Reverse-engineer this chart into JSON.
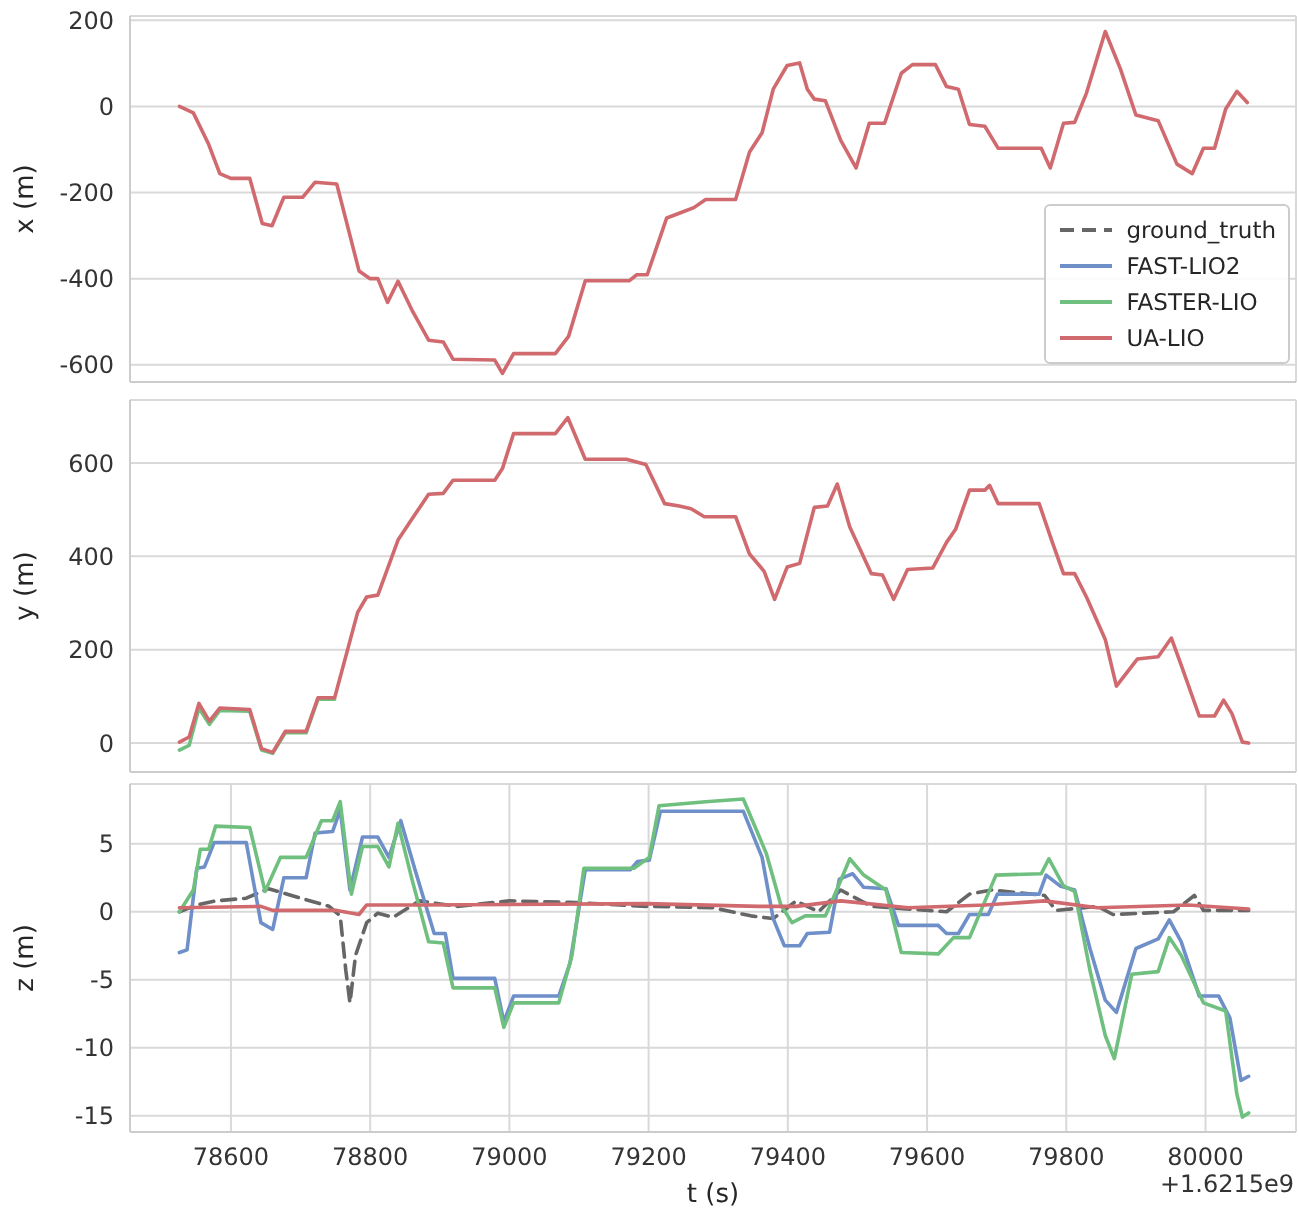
{
  "chart_data": [
    {
      "type": "line",
      "ylabel": "x (m)",
      "xlim": [
        78455,
        80130
      ],
      "xticks": [
        78600,
        78800,
        79000,
        79200,
        79400,
        79600,
        79800,
        80000
      ],
      "ylim": [
        -640,
        210
      ],
      "yticks": [
        -600,
        -400,
        -200,
        0,
        200
      ],
      "grid": true,
      "tick_labels": "y",
      "legend": "bottom right",
      "x": [
        78526,
        78546,
        78568,
        78584,
        78600,
        78627,
        78645,
        78659,
        78676,
        78703,
        78721,
        78752,
        78768,
        78784,
        78800,
        78811,
        78825,
        78840,
        78860,
        78884,
        78905,
        78919,
        78979,
        78990,
        79006,
        79066,
        79085,
        79109,
        79172,
        79183,
        79198,
        79226,
        79244,
        79265,
        79282,
        79325,
        79345,
        79363,
        79379,
        79399,
        79417,
        79428,
        79438,
        79454,
        79476,
        79498,
        79517,
        79539,
        79563,
        79579,
        79612,
        79628,
        79645,
        79661,
        79683,
        79702,
        79764,
        79777,
        79796,
        79812,
        79829,
        79856,
        79878,
        79900,
        79932,
        79959,
        79981,
        79997,
        80013,
        80029,
        80045,
        80060
      ],
      "series": [
        {
          "name": "ground_truth",
          "color": "#666666",
          "line_style": "dashed",
          "values": [
            null,
            null,
            null,
            null,
            null,
            null,
            null,
            null,
            null,
            null,
            null,
            null,
            null,
            null,
            null,
            null,
            null,
            null,
            null,
            null,
            null,
            null,
            null,
            null,
            null,
            null,
            null,
            null,
            null,
            null,
            null,
            null,
            null,
            null,
            null,
            null,
            null,
            null,
            null,
            null,
            null,
            null,
            null,
            null,
            null,
            null,
            null,
            null,
            null,
            null,
            null,
            null,
            null,
            null,
            null,
            null,
            null,
            null,
            null,
            null,
            null,
            null,
            null,
            null,
            null,
            null,
            null,
            null,
            null,
            null,
            null,
            null
          ]
        },
        {
          "name": "FAST-LIO2",
          "color": "#6f8fc9",
          "values": [
            null,
            null,
            null,
            null,
            null,
            null,
            null,
            null,
            null,
            null,
            null,
            null,
            null,
            null,
            null,
            null,
            null,
            null,
            null,
            null,
            null,
            null,
            null,
            null,
            null,
            null,
            null,
            null,
            null,
            null,
            null,
            null,
            null,
            null,
            null,
            null,
            null,
            null,
            null,
            null,
            null,
            null,
            null,
            null,
            null,
            null,
            null,
            null,
            null,
            null,
            null,
            null,
            null,
            null,
            null,
            null,
            null,
            null,
            null,
            null,
            null,
            null,
            null,
            null,
            null,
            null,
            null,
            null,
            null,
            null,
            null,
            null
          ]
        },
        {
          "name": "FASTER-LIO",
          "color": "#6fbf7f",
          "values": [
            null,
            null,
            null,
            null,
            null,
            null,
            null,
            null,
            null,
            null,
            null,
            null,
            null,
            null,
            null,
            null,
            null,
            null,
            null,
            null,
            null,
            null,
            null,
            null,
            null,
            null,
            null,
            null,
            null,
            null,
            null,
            null,
            null,
            null,
            null,
            null,
            null,
            null,
            null,
            null,
            null,
            null,
            null,
            null,
            null,
            null,
            null,
            null,
            null,
            null,
            null,
            null,
            null,
            null,
            null,
            null,
            null,
            null,
            null,
            null,
            null,
            null,
            null,
            null,
            null,
            null,
            null,
            null,
            null,
            null,
            null,
            null
          ]
        },
        {
          "name": "UA-LIO",
          "color": "#d06a6e",
          "values": [
            0,
            -15,
            -88,
            -156,
            -167,
            -167,
            -272,
            -277,
            -211,
            -211,
            -176,
            -180,
            -281,
            -382,
            -400,
            -400,
            -455,
            -406,
            -473,
            -543,
            -547,
            -587,
            -589,
            -620,
            -574,
            -574,
            -534,
            -405,
            -405,
            -391,
            -391,
            -259,
            -248,
            -235,
            -216,
            -216,
            -106,
            -61,
            40,
            95,
            101,
            40,
            17,
            13,
            -79,
            -143,
            -39,
            -39,
            77,
            97,
            97,
            46,
            40,
            -42,
            -46,
            -97,
            -97,
            -143,
            -39,
            -37,
            31,
            174,
            86,
            -20,
            -33,
            -134,
            -156,
            -97,
            -97,
            -6,
            35,
            9
          ]
        }
      ]
    },
    {
      "type": "line",
      "ylabel": "y (m)",
      "xlim": [
        78455,
        80130
      ],
      "xticks": [
        78600,
        78800,
        79000,
        79200,
        79400,
        79600,
        79800,
        80000
      ],
      "ylim": [
        -62,
        735
      ],
      "yticks": [
        0,
        200,
        400,
        600
      ],
      "grid": true,
      "tick_labels": "y",
      "x": [
        78526,
        78540,
        78554,
        78569,
        78584,
        78627,
        78644,
        78660,
        78678,
        78708,
        78725,
        78749,
        78782,
        78795,
        78811,
        78840,
        78860,
        78884,
        78905,
        78919,
        78979,
        78990,
        79006,
        79066,
        79084,
        79109,
        79168,
        79196,
        79223,
        79244,
        79261,
        79280,
        79325,
        79345,
        79366,
        79381,
        79399,
        79417,
        79438,
        79457,
        79471,
        79489,
        79520,
        79536,
        79552,
        79572,
        79608,
        79628,
        79641,
        79661,
        79683,
        79690,
        79702,
        79761,
        79780,
        79796,
        79812,
        79829,
        79856,
        79872,
        79902,
        79932,
        79951,
        79966,
        79991,
        80013,
        80026,
        80038,
        80053,
        80062
      ],
      "series": [
        {
          "color": "#6fbf7f",
          "values": [
            -15,
            -5,
            75,
            40,
            70,
            68,
            -15,
            -22,
            22,
            22,
            94,
            94,
            null,
            null,
            null,
            null,
            null,
            null,
            null,
            null,
            null,
            null,
            null,
            null,
            null,
            null,
            null,
            null,
            null,
            null,
            null,
            null,
            null,
            null,
            null,
            null,
            null,
            null,
            null,
            null,
            null,
            null,
            null,
            null,
            null,
            null,
            null,
            null,
            null,
            null,
            null,
            null,
            null,
            null,
            null,
            null,
            null,
            null,
            null,
            null,
            null,
            null,
            null,
            null,
            null,
            null,
            null,
            null,
            null,
            null
          ]
        },
        {
          "color": "#d06a6e",
          "values": [
            2,
            13,
            85,
            47,
            75,
            72,
            -12,
            -20,
            25,
            25,
            97,
            97,
            280,
            313,
            317,
            435,
            480,
            533,
            535,
            563,
            563,
            588,
            663,
            663,
            697,
            608,
            608,
            597,
            513,
            508,
            502,
            485,
            485,
            405,
            368,
            308,
            377,
            385,
            505,
            508,
            555,
            463,
            363,
            360,
            308,
            372,
            375,
            430,
            458,
            542,
            542,
            552,
            513,
            513,
            430,
            363,
            363,
            313,
            222,
            122,
            180,
            185,
            225,
            163,
            58,
            58,
            92,
            63,
            2,
            0
          ]
        }
      ]
    },
    {
      "type": "line",
      "xlabel": "t (s)",
      "ylabel": "z (m)",
      "xlim": [
        78455,
        80130
      ],
      "xticks": [
        78600,
        78800,
        79000,
        79200,
        79400,
        79600,
        79800,
        80000
      ],
      "ylim": [
        -16.2,
        9.4
      ],
      "yticks": [
        -15,
        -10,
        -5,
        0,
        5
      ],
      "grid": true,
      "annotations": [
        "+1.6215e9"
      ],
      "series": [
        {
          "color": "#666666",
          "line_style": "dashed",
          "x": [
            78526,
            78551,
            78578,
            78622,
            78654,
            78687,
            78741,
            78757,
            78765,
            78771,
            78779,
            78795,
            78811,
            78833,
            78871,
            78925,
            79000,
            79087,
            79196,
            79292,
            79347,
            79379,
            79412,
            79444,
            79476,
            79520,
            79628,
            79661,
            79693,
            79769,
            79785,
            79845,
            79867,
            79954,
            79984,
            79997,
            80062
          ],
          "values": [
            0,
            0.5,
            0.8,
            1.0,
            1.7,
            1.2,
            0.4,
            -0.3,
            -4.3,
            -6.7,
            -3.2,
            -0.8,
            -0.1,
            -0.4,
            0.8,
            0.4,
            0.8,
            0.7,
            0.4,
            0.3,
            -0.3,
            -0.5,
            0.8,
            0,
            1.6,
            0.4,
            0,
            1.3,
            1.6,
            1.2,
            0.1,
            0.4,
            -0.2,
            0,
            1.2,
            0.1,
            0.1
          ]
        },
        {
          "color": "#6f8fc9",
          "x": [
            78526,
            78537,
            78551,
            78562,
            78576,
            78622,
            78643,
            78660,
            78676,
            78708,
            78721,
            78746,
            78757,
            78771,
            78789,
            78811,
            78827,
            78844,
            78865,
            78892,
            78908,
            78919,
            78979,
            78992,
            79006,
            79071,
            79087,
            79109,
            79174,
            79184,
            79201,
            79217,
            79336,
            79363,
            79379,
            79395,
            79417,
            79428,
            79460,
            79474,
            79493,
            79509,
            79541,
            79559,
            79616,
            79628,
            79645,
            79661,
            79688,
            79701,
            79761,
            79771,
            79791,
            79812,
            79834,
            79856,
            79872,
            79900,
            79932,
            79948,
            79965,
            79991,
            80019,
            80035,
            80051,
            80062
          ],
          "values": [
            -3.0,
            -2.8,
            3.2,
            3.3,
            5.1,
            5.1,
            -0.8,
            -1.3,
            2.5,
            2.5,
            5.8,
            5.9,
            7.5,
            1.6,
            5.5,
            5.5,
            4.0,
            6.7,
            3.0,
            -1.6,
            -1.6,
            -4.9,
            -4.9,
            -8.1,
            -6.2,
            -6.2,
            -3.8,
            3.1,
            3.1,
            3.7,
            3.8,
            7.4,
            7.4,
            4.0,
            -0.5,
            -2.5,
            -2.5,
            -1.6,
            -1.5,
            2.4,
            2.8,
            1.8,
            1.7,
            -1.0,
            -1.0,
            -1.6,
            -1.6,
            -0.2,
            -0.2,
            1.3,
            1.3,
            2.7,
            1.9,
            1.6,
            -2.7,
            -6.5,
            -7.4,
            -2.7,
            -2.0,
            -0.6,
            -2.2,
            -6.2,
            -6.2,
            -7.8,
            -12.4,
            -12.1
          ]
        },
        {
          "color": "#6fbf7f",
          "x": [
            78526,
            78546,
            78556,
            78568,
            78578,
            78627,
            78649,
            78671,
            78708,
            78730,
            78746,
            78757,
            78773,
            78789,
            78811,
            78827,
            78840,
            78860,
            78884,
            78905,
            78919,
            78979,
            78992,
            79006,
            79071,
            79090,
            79107,
            79179,
            79201,
            79215,
            79282,
            79336,
            79369,
            79390,
            79406,
            79425,
            79454,
            79471,
            79489,
            79509,
            79541,
            79563,
            79616,
            79638,
            79661,
            79699,
            79764,
            79775,
            79796,
            79812,
            79834,
            79856,
            79869,
            79894,
            79932,
            79948,
            79965,
            79997,
            80029,
            80045,
            80053,
            80062
          ],
          "values": [
            0,
            1.6,
            4.6,
            4.6,
            6.3,
            6.2,
            1.5,
            4.0,
            4.0,
            6.7,
            6.7,
            8.1,
            1.3,
            4.8,
            4.8,
            3.3,
            6.5,
            2.4,
            -2.2,
            -2.3,
            -5.6,
            -5.6,
            -8.5,
            -6.7,
            -6.7,
            -3.2,
            3.2,
            3.2,
            4.0,
            7.8,
            8.1,
            8.3,
            4.3,
            0.5,
            -0.8,
            -0.3,
            -0.3,
            1.7,
            3.9,
            2.7,
            1.6,
            -3.0,
            -3.1,
            -1.9,
            -1.9,
            2.7,
            2.8,
            3.9,
            1.9,
            1.5,
            -4.3,
            -9.1,
            -10.8,
            -4.6,
            -4.4,
            -1.9,
            -3.2,
            -6.7,
            -7.3,
            -13.4,
            -15.1,
            -14.8
          ]
        },
        {
          "color": "#d06a6e",
          "x": [
            78526,
            78643,
            78660,
            78752,
            78784,
            78795,
            78871,
            79196,
            79358,
            79412,
            79476,
            79573,
            79683,
            79769,
            79845,
            79975,
            80062
          ],
          "values": [
            0.3,
            0.4,
            0.1,
            0.1,
            -0.2,
            0.5,
            0.5,
            0.6,
            0.4,
            0.4,
            0.8,
            0.3,
            0.5,
            0.8,
            0.3,
            0.5,
            0.2
          ]
        }
      ]
    }
  ]
}
